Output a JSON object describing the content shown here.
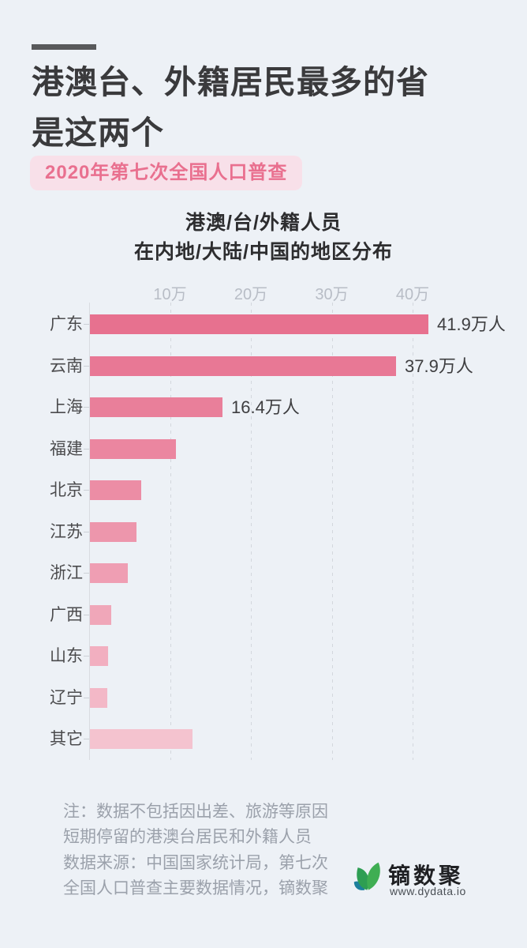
{
  "header": {
    "title_line1": "港澳台、外籍居民最多的省",
    "title_line2": "是这两个",
    "badge": {
      "text": "2020年第七次全国人口普查",
      "bg": "#f8e0e9",
      "color": "#e9708f"
    },
    "accent_color": "#58595b"
  },
  "chart_data": {
    "type": "bar",
    "orientation": "horizontal",
    "title_line1": "港澳/台/外籍人员",
    "title_line2": "在内地/大陆/中国的地区分布",
    "unit": "万人",
    "xlim": [
      0,
      43
    ],
    "grid": "dashed-vertical",
    "x_ticks": [
      {
        "value": 10,
        "label": "10万"
      },
      {
        "value": 20,
        "label": "20万"
      },
      {
        "value": 30,
        "label": "30万"
      },
      {
        "value": 40,
        "label": "40万"
      }
    ],
    "regions": [
      {
        "name": "广东",
        "value": 41.9,
        "label": "41.9万人",
        "color": "#e7718f"
      },
      {
        "name": "云南",
        "value": 37.9,
        "label": "37.9万人",
        "color": "#e87895"
      },
      {
        "name": "上海",
        "value": 16.4,
        "label": "16.4万人",
        "color": "#e97f9a"
      },
      {
        "name": "福建",
        "value": 10.6,
        "label": "",
        "color": "#eb86a0"
      },
      {
        "name": "北京",
        "value": 6.3,
        "label": "",
        "color": "#ec8da5"
      },
      {
        "name": "江苏",
        "value": 5.8,
        "label": "",
        "color": "#ed96ac"
      },
      {
        "name": "浙江",
        "value": 4.7,
        "label": "",
        "color": "#ef9eb3"
      },
      {
        "name": "广西",
        "value": 2.6,
        "label": "",
        "color": "#f0a7b9"
      },
      {
        "name": "山东",
        "value": 2.2,
        "label": "",
        "color": "#f2afc0"
      },
      {
        "name": "辽宁",
        "value": 2.1,
        "label": "",
        "color": "#f3b8c7"
      },
      {
        "name": "其它",
        "value": 12.7,
        "label": "",
        "color": "#f4c3cf"
      }
    ]
  },
  "footer": {
    "note_line1": "注：数据不包括因出差、旅游等原因",
    "note_line2": "短期停留的港澳台居民和外籍人员",
    "source_line1": "数据来源：中国国家统计局，第七次",
    "source_line2": "全国人口普查主要数据情况，镝数聚",
    "logo": {
      "name": "镝数聚",
      "url": "www.dydata.io"
    }
  }
}
